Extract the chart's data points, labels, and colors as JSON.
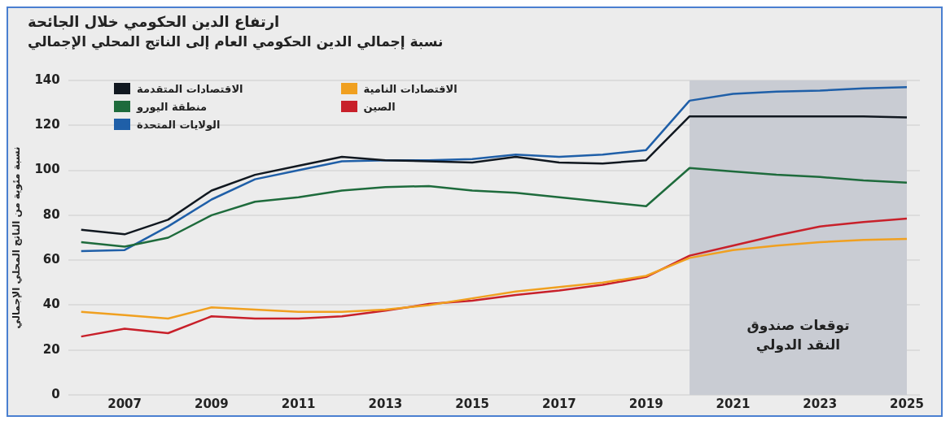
{
  "chart_data": {
    "type": "line",
    "title": "ارتفاع الدين الحكومي خلال الجائحة",
    "subtitle": "نسبة إجمالي الدين الحكومي العام إلى الناتج المحلي الإجمالي",
    "ylabel": "نسبة مئوية من الناتج المحلي الإجمالي",
    "x": [
      2006,
      2007,
      2008,
      2009,
      2010,
      2011,
      2012,
      2013,
      2014,
      2015,
      2016,
      2017,
      2018,
      2019,
      2020,
      2021,
      2022,
      2023,
      2024,
      2025
    ],
    "series": [
      {
        "name": "الاقتصادات المتقدمة",
        "color": "#111820",
        "values": [
          73.5,
          71.5,
          78,
          91,
          98,
          102,
          106,
          104.5,
          104,
          103.5,
          106,
          103.5,
          103,
          104.5,
          124,
          124,
          124,
          124,
          124,
          123.5
        ]
      },
      {
        "name": "منطقة اليورو",
        "color": "#1e6b3c",
        "values": [
          68,
          66,
          70,
          80,
          86,
          88,
          91,
          92.5,
          93,
          91,
          90,
          88,
          86,
          84,
          101,
          99.5,
          98,
          97,
          95.5,
          94.5
        ]
      },
      {
        "name": "الولايات المتحدة",
        "color": "#1f5fa8",
        "values": [
          64,
          64.5,
          75,
          87,
          96,
          100,
          104,
          104.5,
          104.5,
          105,
          107,
          106,
          107,
          109,
          131,
          134,
          135,
          135.5,
          136.5,
          137
        ]
      },
      {
        "name": "الاقتصادات النامية",
        "color": "#f0a020",
        "values": [
          37,
          35.5,
          34,
          39,
          38,
          37,
          37,
          38,
          40,
          43,
          46,
          48,
          50,
          53,
          61,
          64.5,
          66.5,
          68,
          69,
          69.5
        ]
      },
      {
        "name": "الصين",
        "color": "#c8202a",
        "values": [
          26,
          29.5,
          27.5,
          35,
          34,
          34,
          35,
          37.5,
          40.5,
          42,
          44.5,
          46.5,
          49,
          52.5,
          62,
          66.5,
          71,
          75,
          77,
          78.5
        ]
      }
    ],
    "bands": [
      {
        "axis": "x",
        "from": 2020,
        "to": 2025,
        "label": "توقعات صندوق النقد الدولي",
        "color": "#c9ccd3"
      }
    ],
    "xlim": [
      2005.7,
      2025.3
    ],
    "xticks": [
      2007,
      2009,
      2011,
      2013,
      2015,
      2017,
      2019,
      2021,
      2023,
      2025
    ],
    "ylim": [
      0,
      140
    ],
    "yticks": [
      0,
      20,
      40,
      60,
      80,
      100,
      120,
      140
    ],
    "grid": "y",
    "legend": "top left",
    "marker": "none",
    "line_style": "solid"
  }
}
